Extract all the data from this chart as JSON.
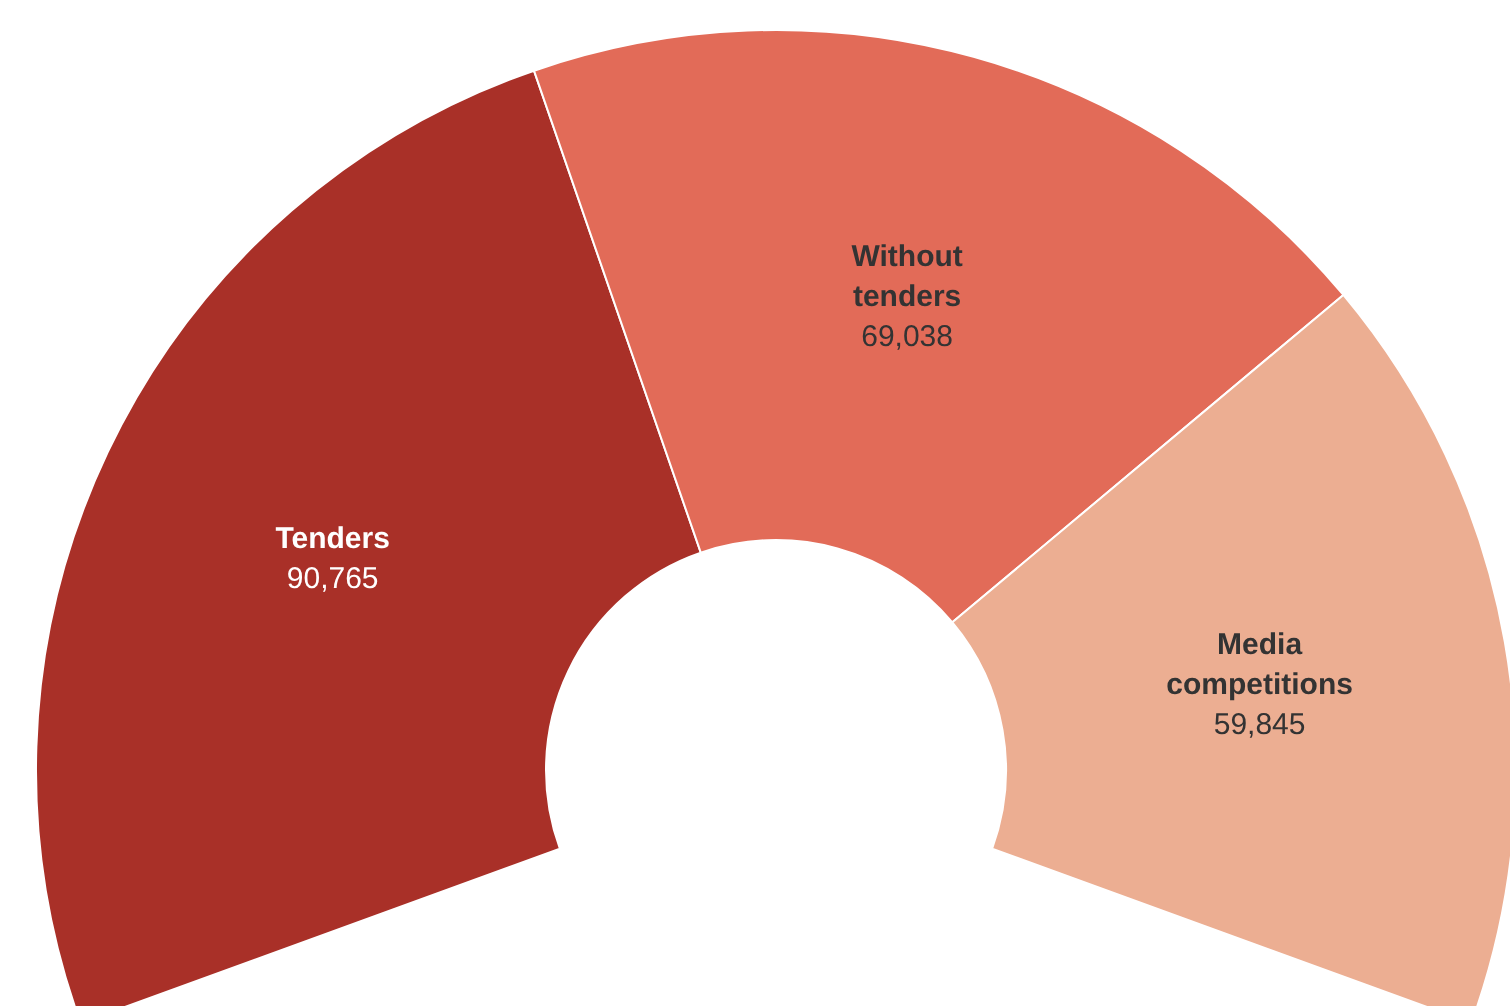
{
  "chart_data": {
    "type": "donut",
    "categories": [
      "Tenders",
      "Without tenders",
      "Media competitions"
    ],
    "values": [
      90765,
      69038,
      59845
    ],
    "colors": [
      "#a93028",
      "#e26b58",
      "#ecae92"
    ],
    "value_labels": [
      "90,765",
      "69,038",
      "59,845"
    ],
    "legend": false
  }
}
